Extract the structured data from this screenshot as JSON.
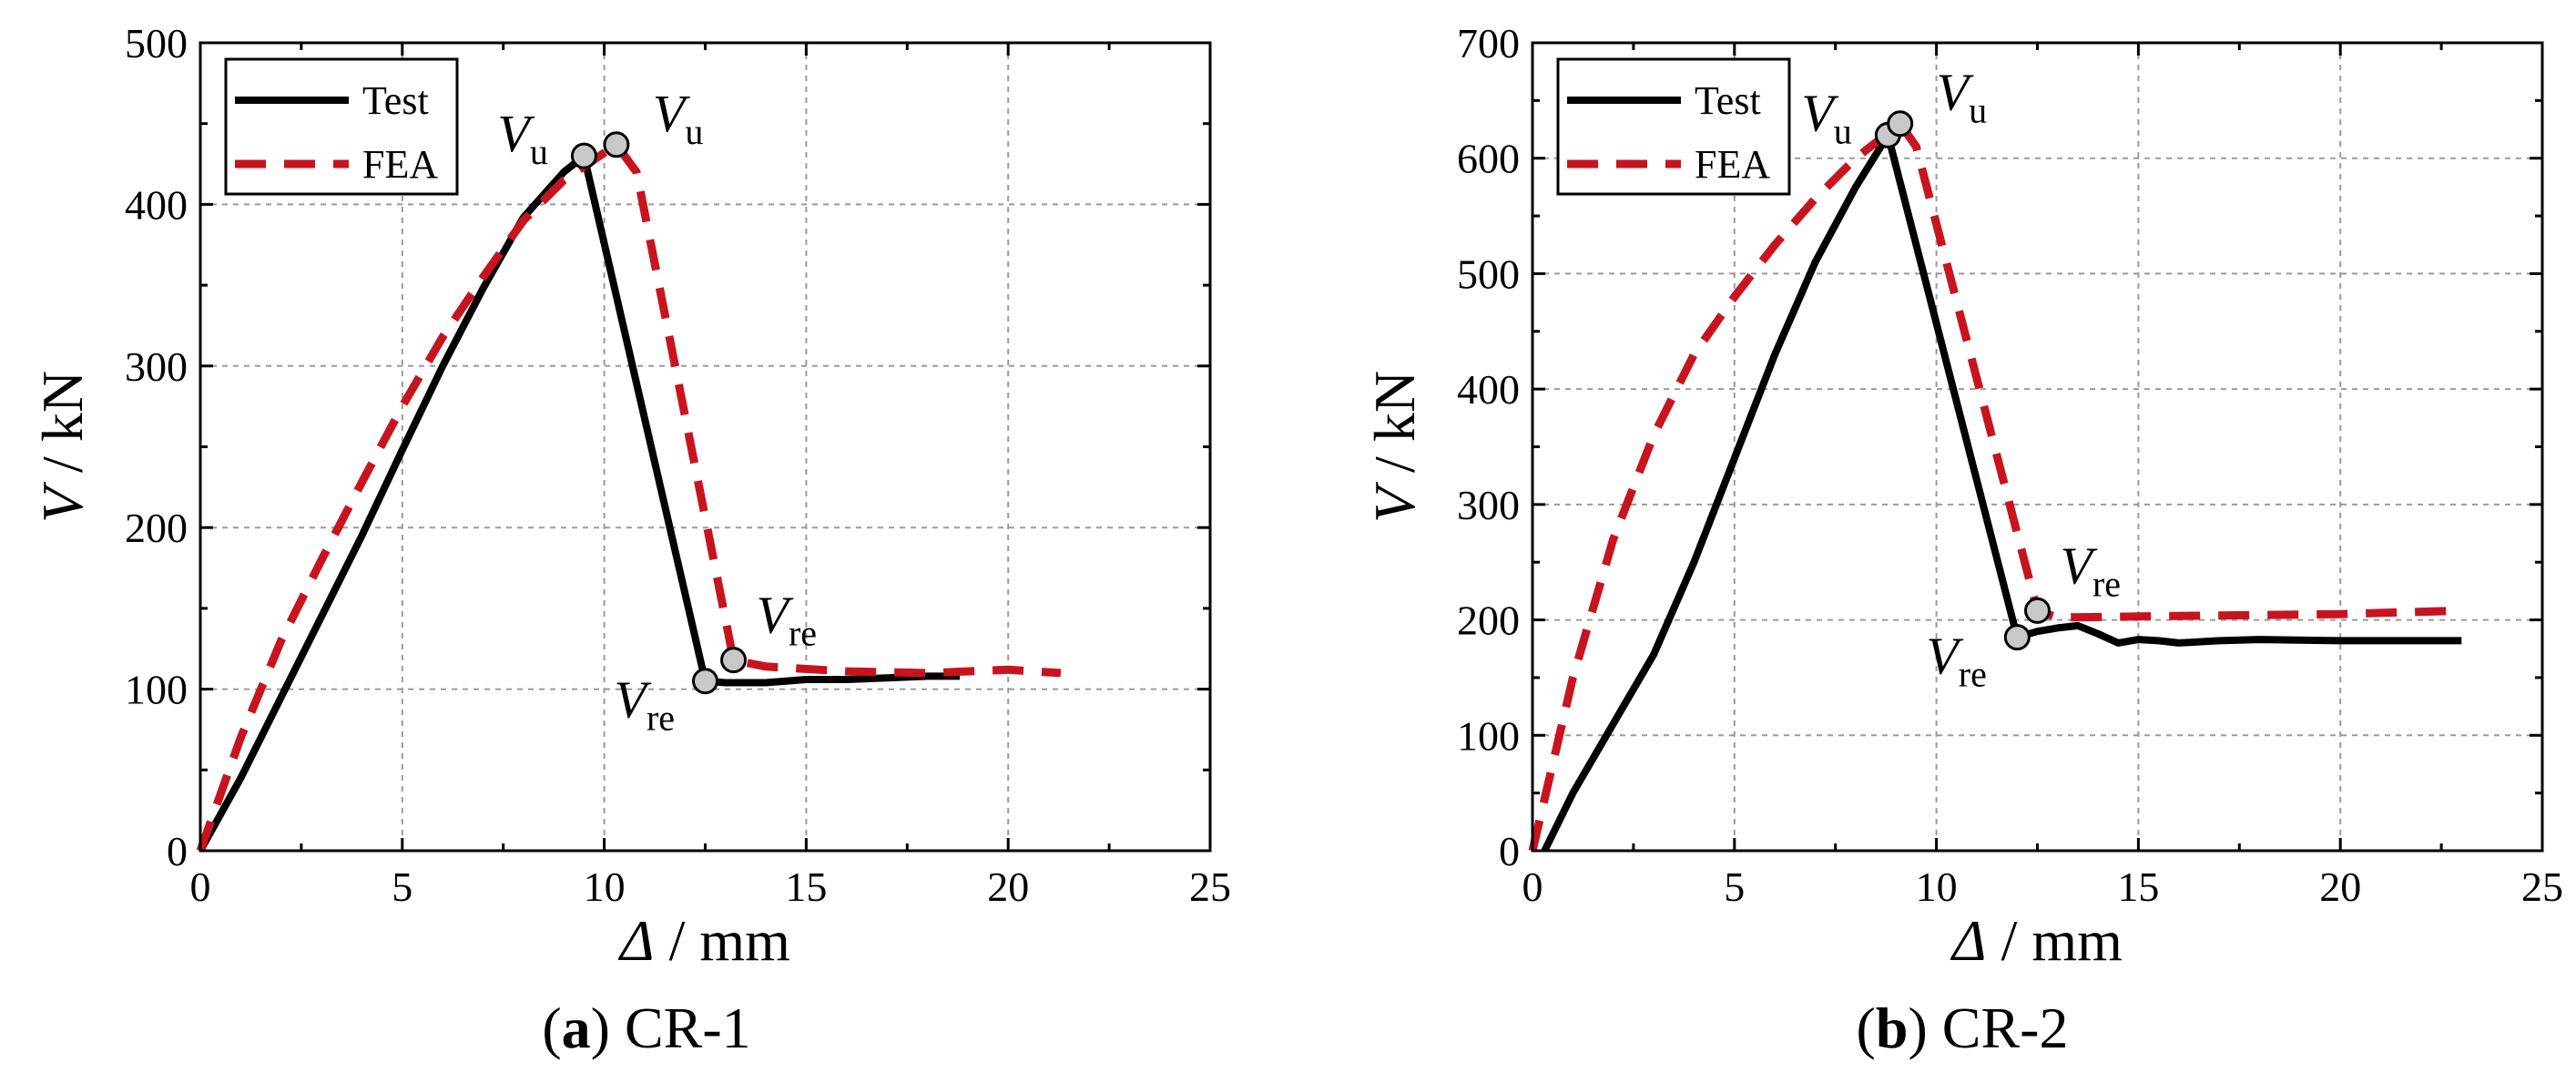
{
  "chart_data": [
    {
      "type": "line",
      "caption_label": "a",
      "caption_text": "CR-1",
      "xlabel": {
        "symbol": "Δ",
        "unit": "/ mm"
      },
      "ylabel": {
        "symbol": "V",
        "unit": "/ kN"
      },
      "xlim": [
        0,
        25
      ],
      "ylim": [
        0,
        500
      ],
      "xticks": [
        0,
        5,
        10,
        15,
        20,
        25
      ],
      "yticks": [
        0,
        100,
        200,
        300,
        400,
        500
      ],
      "grid": true,
      "legend_position": "top-left",
      "series": [
        {
          "name": "Test",
          "color": "#000000",
          "style": "solid",
          "x": [
            0,
            1,
            2,
            3,
            4,
            5,
            6,
            7,
            8,
            9,
            9.5,
            12.5,
            13,
            14,
            15,
            16,
            17,
            18,
            18.8
          ],
          "y": [
            0,
            45,
            95,
            145,
            195,
            248,
            300,
            348,
            392,
            420,
            430,
            105,
            104,
            104,
            106,
            106,
            107,
            108,
            108
          ]
        },
        {
          "name": "FEA",
          "color": "#c8141e",
          "style": "dashed",
          "x": [
            0,
            1,
            2,
            3,
            4,
            5,
            6,
            7,
            8,
            9,
            10.3,
            10.8,
            13.2,
            14,
            16,
            18,
            20,
            21.3
          ],
          "y": [
            0,
            70,
            130,
            180,
            228,
            275,
            318,
            355,
            390,
            415,
            437,
            420,
            118,
            114,
            111,
            110,
            112,
            110
          ]
        }
      ],
      "annotations": [
        {
          "label": "V",
          "sub": "u",
          "x": 9.5,
          "y": 430,
          "series": "Test",
          "side": "left"
        },
        {
          "label": "V",
          "sub": "u",
          "x": 10.3,
          "y": 437,
          "series": "FEA",
          "side": "right"
        },
        {
          "label": "V",
          "sub": "re",
          "x": 13.2,
          "y": 118,
          "series": "FEA",
          "side": "right"
        },
        {
          "label": "V",
          "sub": "re",
          "x": 12.5,
          "y": 105,
          "series": "Test",
          "side": "left"
        }
      ]
    },
    {
      "type": "line",
      "caption_label": "b",
      "caption_text": "CR-2",
      "xlabel": {
        "symbol": "Δ",
        "unit": "/ mm"
      },
      "ylabel": {
        "symbol": "V",
        "unit": "/ kN"
      },
      "xlim": [
        0,
        25
      ],
      "ylim": [
        0,
        700
      ],
      "xticks": [
        0,
        5,
        10,
        15,
        20,
        25
      ],
      "yticks": [
        0,
        100,
        200,
        300,
        400,
        500,
        600,
        700
      ],
      "grid": true,
      "legend_position": "top-left",
      "series": [
        {
          "name": "Test",
          "color": "#000000",
          "style": "solid",
          "x": [
            0.3,
            1,
            2,
            3,
            4,
            5,
            6,
            7,
            8,
            8.8,
            12,
            12.5,
            13,
            13.5,
            14,
            14.5,
            15,
            15.5,
            16,
            17,
            18,
            20,
            22,
            23
          ],
          "y": [
            0,
            50,
            110,
            170,
            250,
            340,
            430,
            510,
            575,
            620,
            185,
            190,
            193,
            195,
            188,
            180,
            183,
            182,
            180,
            182,
            183,
            182,
            182,
            182
          ]
        },
        {
          "name": "FEA",
          "color": "#c8141e",
          "style": "dashed",
          "x": [
            0,
            1,
            2,
            3,
            4,
            5,
            6,
            7,
            8,
            9.1,
            9.5,
            12.5,
            13,
            15,
            20,
            23
          ],
          "y": [
            0,
            150,
            270,
            360,
            430,
            480,
            525,
            565,
            600,
            630,
            610,
            208,
            202,
            203,
            205,
            208
          ]
        }
      ],
      "annotations": [
        {
          "label": "V",
          "sub": "u",
          "x": 8.8,
          "y": 620,
          "series": "Test",
          "side": "left"
        },
        {
          "label": "V",
          "sub": "u",
          "x": 9.1,
          "y": 630,
          "series": "FEA",
          "side": "right"
        },
        {
          "label": "V",
          "sub": "re",
          "x": 12.5,
          "y": 208,
          "series": "FEA",
          "side": "right"
        },
        {
          "label": "V",
          "sub": "re",
          "x": 12,
          "y": 185,
          "series": "Test",
          "side": "left"
        }
      ]
    }
  ]
}
